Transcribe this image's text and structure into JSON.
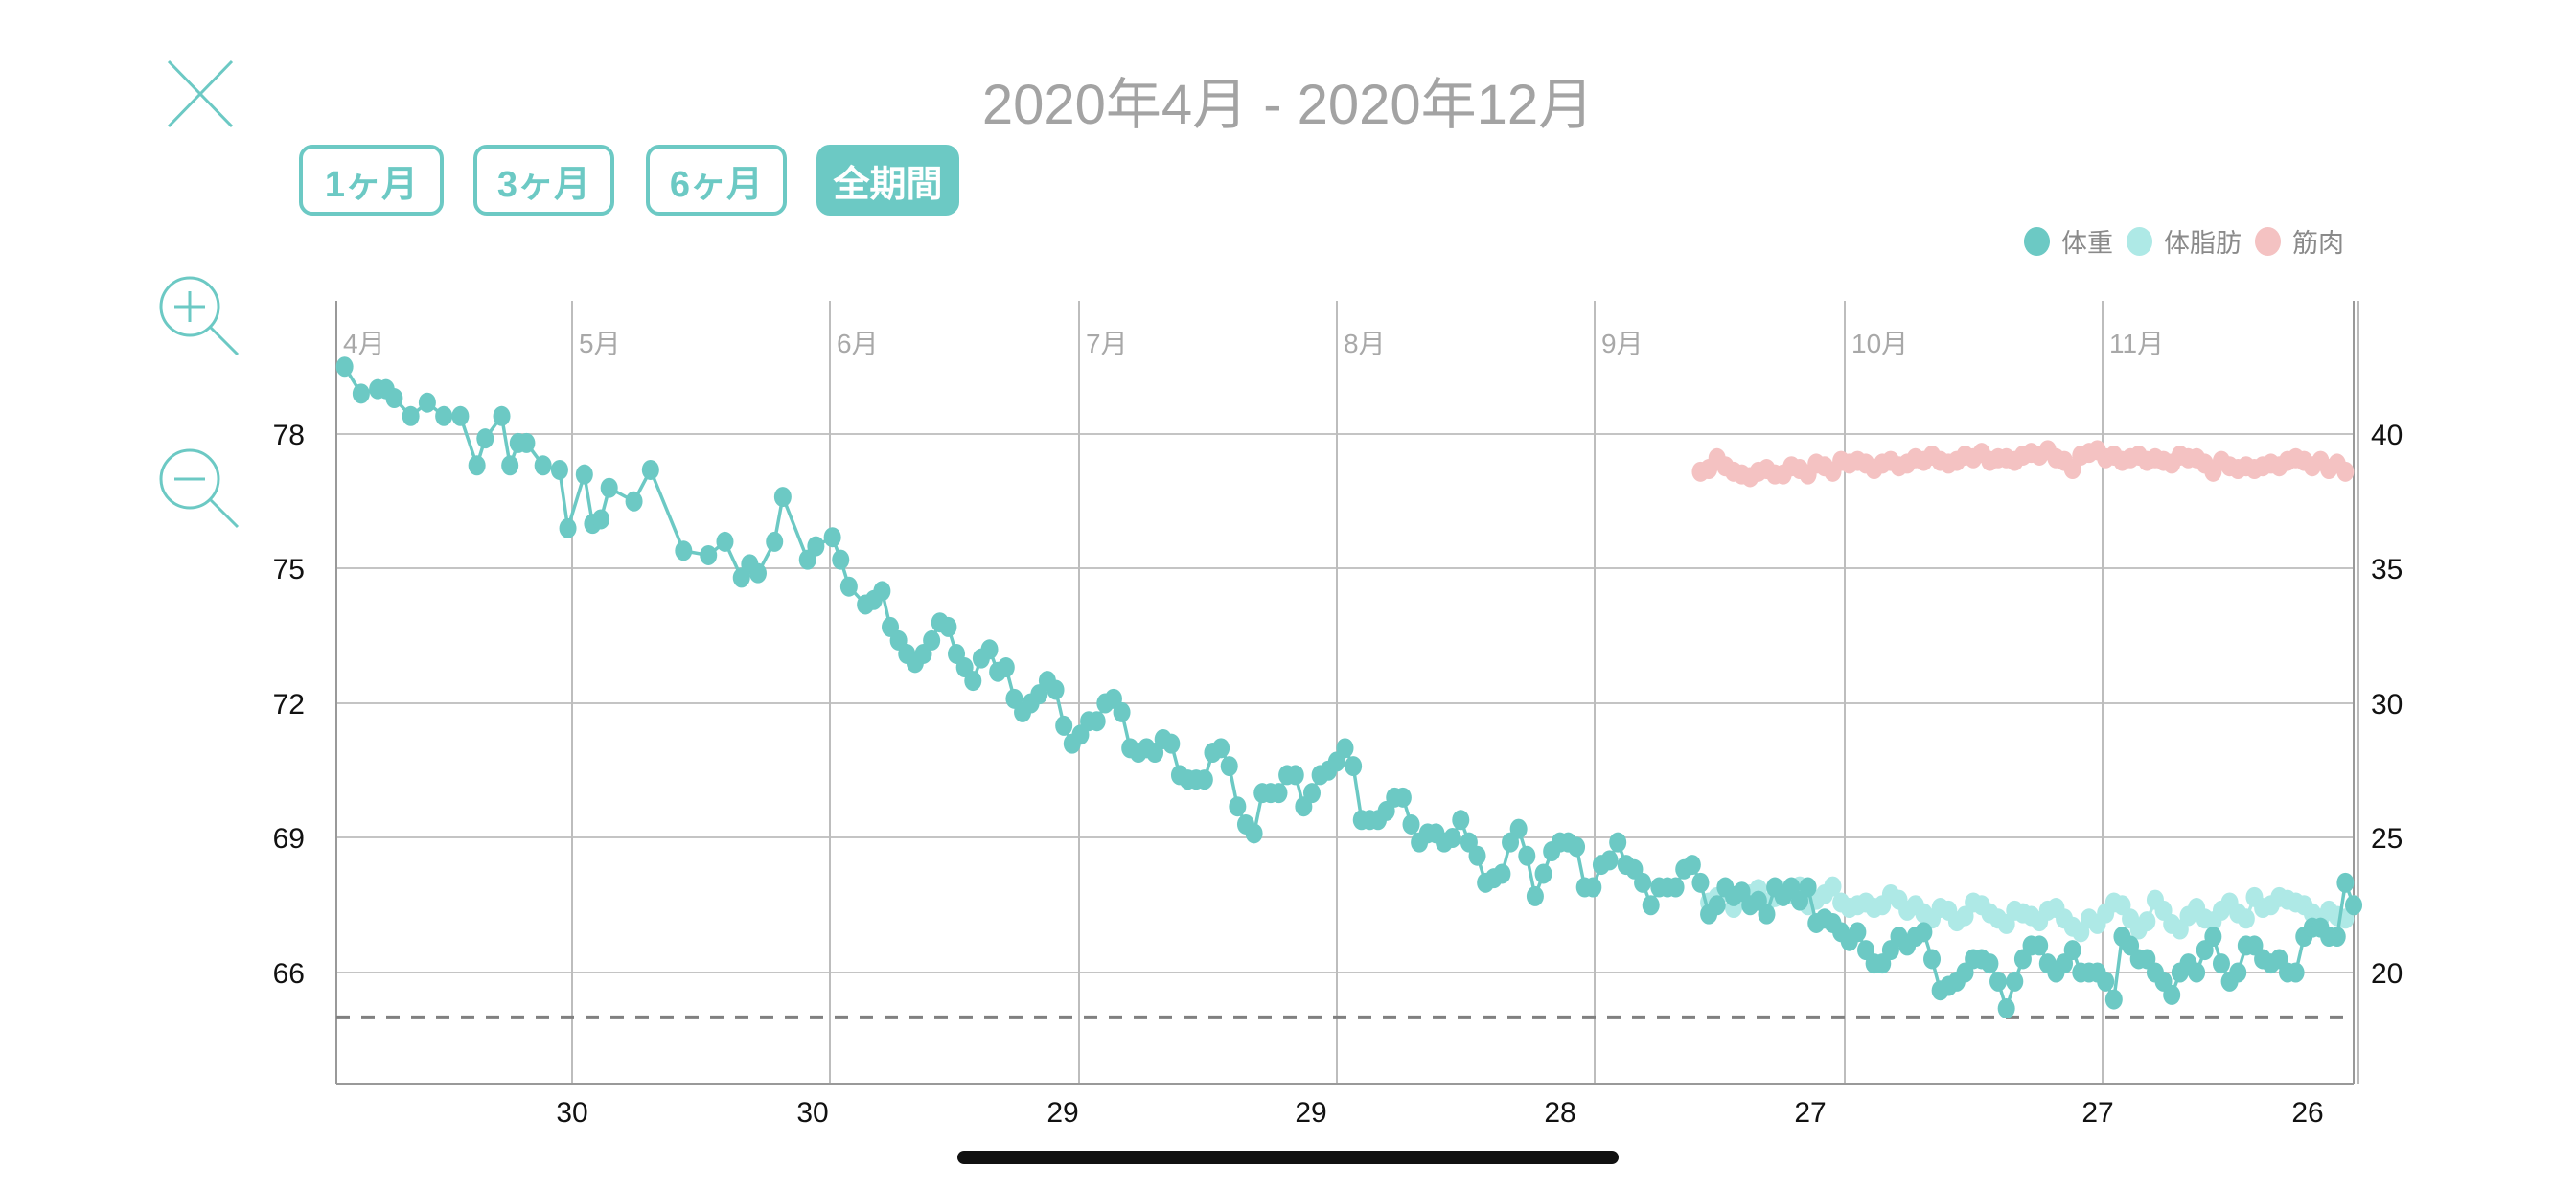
{
  "header": {
    "title": "2020年4月 - 2020年12月",
    "range_buttons": [
      {
        "label": "1ヶ月",
        "active": false
      },
      {
        "label": "3ヶ月",
        "active": false
      },
      {
        "label": "6ヶ月",
        "active": false
      },
      {
        "label": "全期間",
        "active": true
      }
    ]
  },
  "icons": {
    "close": "close-icon",
    "zoom_in": "zoom-in-icon",
    "zoom_out": "zoom-out-icon"
  },
  "colors": {
    "accent": "#6cc9c4",
    "weight": "#6cc9c4",
    "body_fat": "#aee9e6",
    "muscle": "#f4c2c2",
    "goal_line": "#808080"
  },
  "chart_data": {
    "type": "line",
    "legend": [
      "体重",
      "体脂肪",
      "筋肉"
    ],
    "legend_position": "top-right",
    "month_labels": [
      "4月",
      "5月",
      "6月",
      "7月",
      "8月",
      "9月",
      "10月",
      "11月"
    ],
    "x_tick_labels": [
      "30",
      "30",
      "29",
      "29",
      "28",
      "27",
      "27",
      "26"
    ],
    "left_axis": {
      "ticks": [
        "78",
        "75",
        "72",
        "69",
        "66"
      ],
      "range": [
        63.8,
        80.8
      ]
    },
    "right_axis": {
      "ticks": [
        "40",
        "35",
        "30",
        "25",
        "20"
      ],
      "range": [
        16.3,
        44.6
      ]
    },
    "x_unit": "days since 2020-04-01",
    "x_range": [
      0,
      244
    ],
    "goal_line": 65.0,
    "series": [
      {
        "name": "体重",
        "axis": "left",
        "points": [
          [
            1,
            79.5
          ],
          [
            3,
            78.9
          ],
          [
            5,
            79.0
          ],
          [
            6,
            79.0
          ],
          [
            7,
            78.8
          ],
          [
            9,
            78.4
          ],
          [
            11,
            78.7
          ],
          [
            13,
            78.4
          ],
          [
            15,
            78.4
          ],
          [
            17,
            77.3
          ],
          [
            18,
            77.9
          ],
          [
            20,
            78.4
          ],
          [
            21,
            77.3
          ],
          [
            22,
            77.8
          ],
          [
            23,
            77.8
          ],
          [
            25,
            77.3
          ],
          [
            27,
            77.2
          ],
          [
            28,
            75.9
          ],
          [
            30,
            77.1
          ],
          [
            31,
            76.0
          ],
          [
            32,
            76.1
          ],
          [
            33,
            76.8
          ],
          [
            36,
            76.5
          ],
          [
            38,
            77.2
          ],
          [
            42,
            75.4
          ],
          [
            45,
            75.3
          ],
          [
            47,
            75.6
          ],
          [
            49,
            74.8
          ],
          [
            50,
            75.1
          ],
          [
            51,
            74.9
          ],
          [
            53,
            75.6
          ],
          [
            54,
            76.6
          ],
          [
            57,
            75.2
          ],
          [
            58,
            75.5
          ],
          [
            60,
            75.7
          ],
          [
            61,
            75.2
          ],
          [
            62,
            74.6
          ],
          [
            64,
            74.2
          ],
          [
            65,
            74.3
          ],
          [
            66,
            74.5
          ],
          [
            67,
            73.7
          ],
          [
            68,
            73.4
          ],
          [
            69,
            73.1
          ],
          [
            70,
            72.9
          ],
          [
            71,
            73.1
          ],
          [
            72,
            73.4
          ],
          [
            73,
            73.8
          ],
          [
            74,
            73.7
          ],
          [
            75,
            73.1
          ],
          [
            76,
            72.8
          ],
          [
            77,
            72.5
          ],
          [
            78,
            73.0
          ],
          [
            79,
            73.2
          ],
          [
            80,
            72.7
          ],
          [
            81,
            72.8
          ],
          [
            82,
            72.1
          ],
          [
            83,
            71.8
          ],
          [
            84,
            72.0
          ],
          [
            85,
            72.2
          ],
          [
            86,
            72.5
          ],
          [
            87,
            72.3
          ],
          [
            88,
            71.5
          ],
          [
            89,
            71.1
          ],
          [
            90,
            71.3
          ],
          [
            91,
            71.6
          ],
          [
            92,
            71.6
          ],
          [
            93,
            72.0
          ],
          [
            94,
            72.1
          ],
          [
            95,
            71.8
          ],
          [
            96,
            71.0
          ],
          [
            97,
            70.9
          ],
          [
            98,
            71.0
          ],
          [
            99,
            70.9
          ],
          [
            100,
            71.2
          ],
          [
            101,
            71.1
          ],
          [
            102,
            70.4
          ],
          [
            103,
            70.3
          ],
          [
            104,
            70.3
          ],
          [
            105,
            70.3
          ],
          [
            106,
            70.9
          ],
          [
            107,
            71.0
          ],
          [
            108,
            70.6
          ],
          [
            109,
            69.7
          ],
          [
            110,
            69.3
          ],
          [
            111,
            69.1
          ],
          [
            112,
            70.0
          ],
          [
            113,
            70.0
          ],
          [
            114,
            70.0
          ],
          [
            115,
            70.4
          ],
          [
            116,
            70.4
          ],
          [
            117,
            69.7
          ],
          [
            118,
            70.0
          ],
          [
            119,
            70.4
          ],
          [
            120,
            70.5
          ],
          [
            121,
            70.7
          ],
          [
            122,
            71.0
          ],
          [
            123,
            70.6
          ],
          [
            124,
            69.4
          ],
          [
            125,
            69.4
          ],
          [
            126,
            69.4
          ],
          [
            127,
            69.6
          ],
          [
            128,
            69.9
          ],
          [
            129,
            69.9
          ],
          [
            130,
            69.3
          ],
          [
            131,
            68.9
          ],
          [
            132,
            69.1
          ],
          [
            133,
            69.1
          ],
          [
            134,
            68.9
          ],
          [
            135,
            69.0
          ],
          [
            136,
            69.4
          ],
          [
            137,
            68.9
          ],
          [
            138,
            68.6
          ],
          [
            139,
            68.0
          ],
          [
            140,
            68.1
          ],
          [
            141,
            68.2
          ],
          [
            142,
            68.9
          ],
          [
            143,
            69.2
          ],
          [
            144,
            68.6
          ],
          [
            145,
            67.7
          ],
          [
            146,
            68.2
          ],
          [
            147,
            68.7
          ],
          [
            148,
            68.9
          ],
          [
            149,
            68.9
          ],
          [
            150,
            68.8
          ],
          [
            151,
            67.9
          ],
          [
            152,
            67.9
          ],
          [
            153,
            68.4
          ],
          [
            154,
            68.5
          ],
          [
            155,
            68.9
          ],
          [
            156,
            68.4
          ],
          [
            157,
            68.3
          ],
          [
            158,
            68.0
          ],
          [
            159,
            67.5
          ],
          [
            160,
            67.9
          ],
          [
            161,
            67.9
          ],
          [
            162,
            67.9
          ],
          [
            163,
            68.3
          ],
          [
            164,
            68.4
          ],
          [
            165,
            68.0
          ],
          [
            166,
            67.3
          ],
          [
            167,
            67.5
          ],
          [
            168,
            67.9
          ],
          [
            169,
            67.7
          ],
          [
            170,
            67.8
          ],
          [
            171,
            67.5
          ],
          [
            172,
            67.6
          ],
          [
            173,
            67.3
          ],
          [
            174,
            67.9
          ],
          [
            175,
            67.7
          ],
          [
            176,
            67.9
          ],
          [
            177,
            67.6
          ],
          [
            178,
            67.9
          ],
          [
            179,
            67.1
          ],
          [
            180,
            67.2
          ],
          [
            181,
            67.1
          ],
          [
            182,
            66.9
          ],
          [
            183,
            66.7
          ],
          [
            184,
            66.9
          ],
          [
            185,
            66.5
          ],
          [
            186,
            66.2
          ],
          [
            187,
            66.2
          ],
          [
            188,
            66.5
          ],
          [
            189,
            66.8
          ],
          [
            190,
            66.6
          ],
          [
            191,
            66.8
          ],
          [
            192,
            66.9
          ],
          [
            193,
            66.3
          ],
          [
            194,
            65.6
          ],
          [
            195,
            65.7
          ],
          [
            196,
            65.8
          ],
          [
            197,
            66.0
          ],
          [
            198,
            66.3
          ],
          [
            199,
            66.3
          ],
          [
            200,
            66.2
          ],
          [
            201,
            65.8
          ],
          [
            202,
            65.2
          ],
          [
            203,
            65.8
          ],
          [
            204,
            66.3
          ],
          [
            205,
            66.6
          ],
          [
            206,
            66.6
          ],
          [
            207,
            66.2
          ],
          [
            208,
            66.0
          ],
          [
            209,
            66.2
          ],
          [
            210,
            66.5
          ],
          [
            211,
            66.0
          ],
          [
            212,
            66.0
          ],
          [
            213,
            66.0
          ],
          [
            214,
            65.8
          ],
          [
            215,
            65.4
          ],
          [
            216,
            66.8
          ],
          [
            217,
            66.6
          ],
          [
            218,
            66.3
          ],
          [
            219,
            66.3
          ],
          [
            220,
            66.0
          ],
          [
            221,
            65.8
          ],
          [
            222,
            65.5
          ],
          [
            223,
            66.0
          ],
          [
            224,
            66.2
          ],
          [
            225,
            66.0
          ],
          [
            226,
            66.5
          ],
          [
            227,
            66.8
          ],
          [
            228,
            66.2
          ],
          [
            229,
            65.8
          ],
          [
            230,
            66.0
          ],
          [
            231,
            66.6
          ],
          [
            232,
            66.6
          ],
          [
            233,
            66.3
          ],
          [
            234,
            66.2
          ],
          [
            235,
            66.3
          ],
          [
            236,
            66.0
          ],
          [
            237,
            66.0
          ],
          [
            238,
            66.8
          ],
          [
            239,
            67.0
          ],
          [
            240,
            67.0
          ],
          [
            241,
            66.8
          ],
          [
            242,
            66.8
          ],
          [
            243,
            68.0
          ],
          [
            244,
            67.5
          ]
        ]
      },
      {
        "name": "体脂肪",
        "axis": "right",
        "start_day": 166,
        "values": [
          22.6,
          22.8,
          23.0,
          22.4,
          22.7,
          22.9,
          23.1,
          22.6,
          22.8,
          23.0,
          22.9,
          23.2,
          22.5,
          22.7,
          22.9,
          23.2,
          22.6,
          22.4,
          22.5,
          22.6,
          22.4,
          22.5,
          22.9,
          22.7,
          22.3,
          22.5,
          22.2,
          22.0,
          22.4,
          22.3,
          21.9,
          22.1,
          22.6,
          22.5,
          22.2,
          22.0,
          21.8,
          22.3,
          22.2,
          22.1,
          21.9,
          22.3,
          22.4,
          22.0,
          21.7,
          21.5,
          22.0,
          21.8,
          22.2,
          22.6,
          22.5,
          22.0,
          21.6,
          21.9,
          22.7,
          22.3,
          21.8,
          21.6,
          22.1,
          22.4,
          22.0,
          21.9,
          22.3,
          22.6,
          22.2,
          22.0,
          22.8,
          22.4,
          22.5,
          22.8,
          22.7,
          22.6,
          22.5,
          22.2,
          22.0,
          22.3,
          22.1,
          22.0,
          22.5
        ]
      },
      {
        "name": "筋肉",
        "axis": "right",
        "start_day": 165,
        "values": [
          38.6,
          38.7,
          39.1,
          38.8,
          38.6,
          38.5,
          38.4,
          38.6,
          38.7,
          38.5,
          38.5,
          38.8,
          38.7,
          38.5,
          38.9,
          38.8,
          38.6,
          39.0,
          38.9,
          39.0,
          38.9,
          38.7,
          38.9,
          39.0,
          38.8,
          38.9,
          39.1,
          39.0,
          39.2,
          39.0,
          38.9,
          39.0,
          39.2,
          39.1,
          39.3,
          39.0,
          39.1,
          39.1,
          39.0,
          39.2,
          39.3,
          39.2,
          39.4,
          39.1,
          39.0,
          38.7,
          39.2,
          39.3,
          39.4,
          39.1,
          39.2,
          39.0,
          39.1,
          39.2,
          39.0,
          39.1,
          39.0,
          38.9,
          39.2,
          39.1,
          39.1,
          38.9,
          38.6,
          39.0,
          38.8,
          38.7,
          38.8,
          38.7,
          38.8,
          38.9,
          38.8,
          39.0,
          39.1,
          39.0,
          38.8,
          39.0,
          38.7,
          38.9,
          38.6
        ]
      }
    ]
  }
}
